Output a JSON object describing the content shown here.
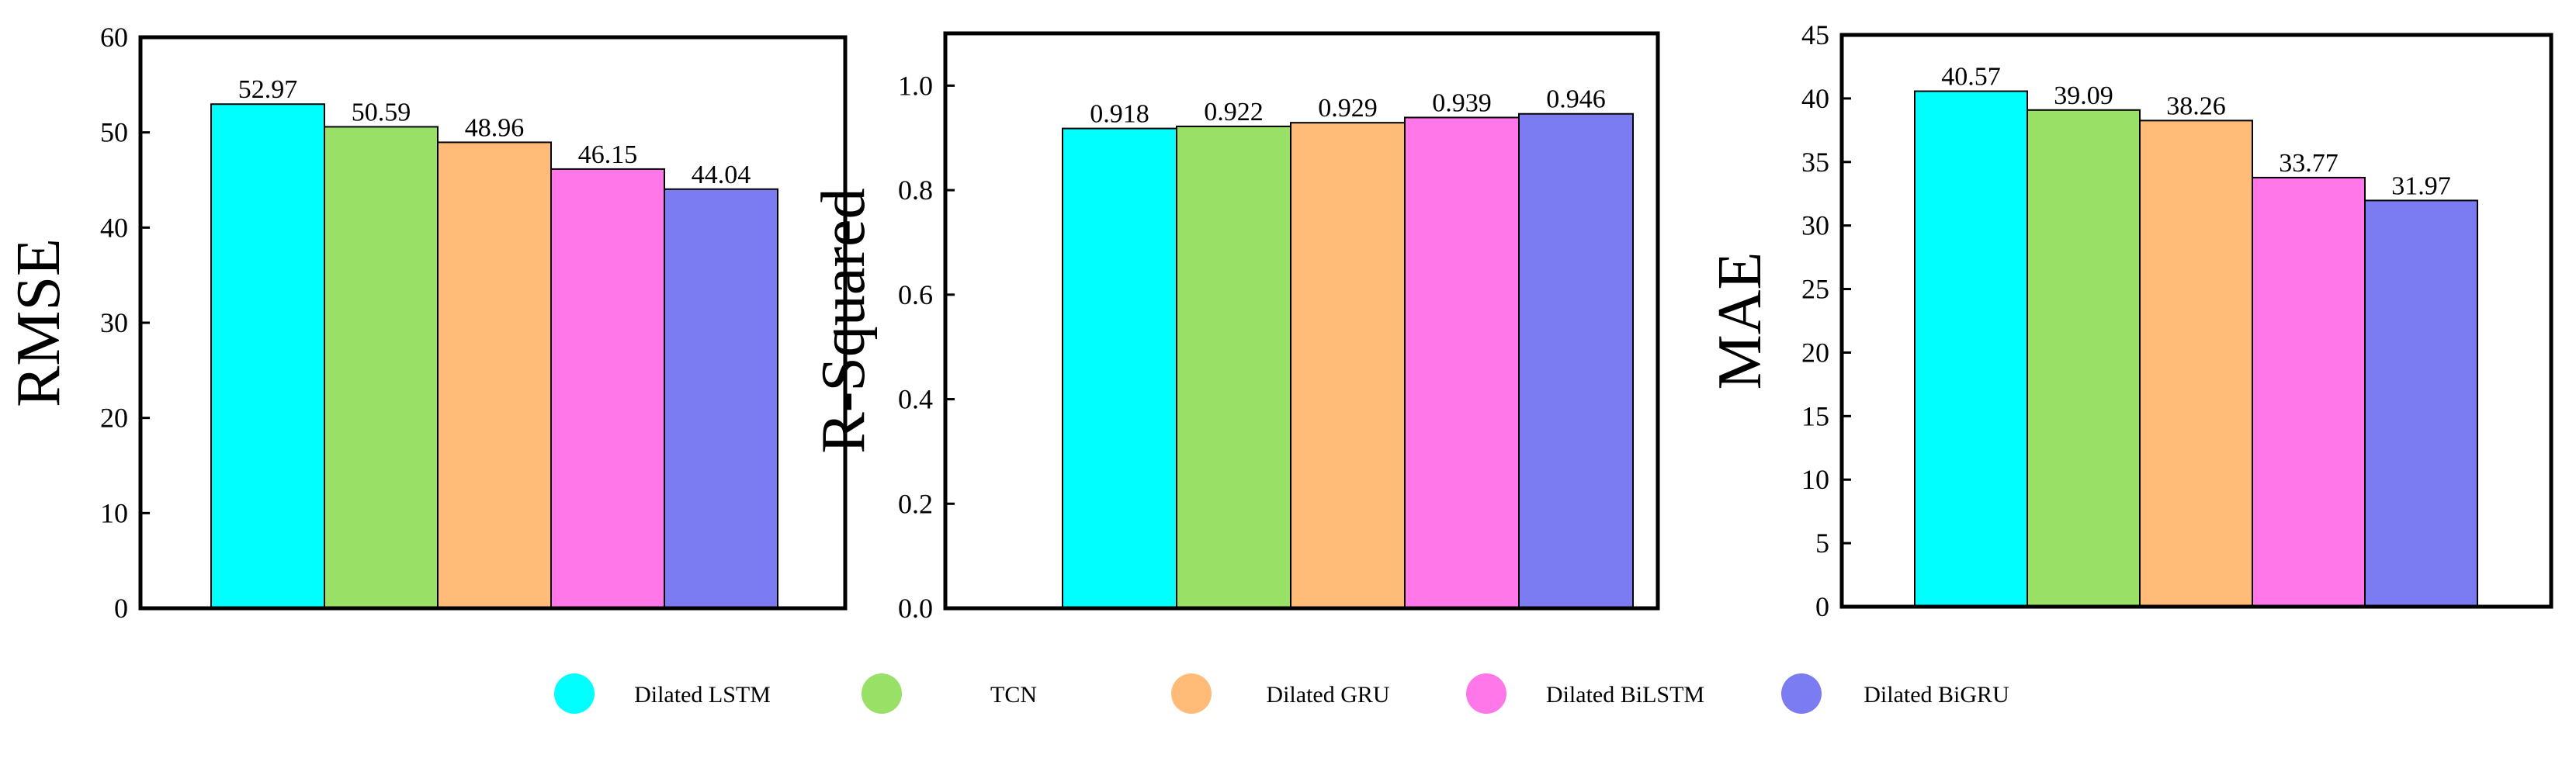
{
  "legend": [
    {
      "label": "Dilated LSTM",
      "color": "#00FFFF"
    },
    {
      "label": "TCN",
      "color": "#99E066"
    },
    {
      "label": "Dilated GRU",
      "color": "#FFBB77"
    },
    {
      "label": "Dilated BiLSTM",
      "color": "#FF77E8"
    },
    {
      "label": "Dilated BiGRU",
      "color": "#7B7BF2"
    }
  ],
  "chart_data": [
    {
      "type": "bar",
      "ylabel": "RMSE",
      "categories": [
        "Dilated LSTM",
        "TCN",
        "Dilated GRU",
        "Dilated BiLSTM",
        "Dilated BiGRU"
      ],
      "values": [
        52.97,
        50.59,
        48.96,
        46.15,
        44.04
      ],
      "value_labels": [
        "52.97",
        "50.59",
        "48.96",
        "46.15",
        "44.04"
      ],
      "ylim": [
        0,
        60
      ],
      "yticks": [
        0,
        10,
        20,
        30,
        40,
        50,
        60
      ],
      "ytick_labels": [
        "0",
        "10",
        "20",
        "30",
        "40",
        "50",
        "60"
      ],
      "grid": false
    },
    {
      "type": "bar",
      "ylabel": "R-Squared",
      "categories": [
        "Dilated LSTM",
        "TCN",
        "Dilated GRU",
        "Dilated BiLSTM",
        "Dilated BiGRU"
      ],
      "values": [
        0.918,
        0.922,
        0.929,
        0.939,
        0.946
      ],
      "value_labels": [
        "0.918",
        "0.922",
        "0.929",
        "0.939",
        "0.946"
      ],
      "ylim": [
        0,
        1.1
      ],
      "yticks": [
        0,
        0.2,
        0.4,
        0.6,
        0.8,
        1.0
      ],
      "ytick_labels": [
        "0.0",
        "0.2",
        "0.4",
        "0.6",
        "0.8",
        "1.0"
      ],
      "grid": false
    },
    {
      "type": "bar",
      "ylabel": "MAE",
      "categories": [
        "Dilated LSTM",
        "TCN",
        "Dilated GRU",
        "Dilated BiLSTM",
        "Dilated BiGRU"
      ],
      "values": [
        40.57,
        39.09,
        38.26,
        33.77,
        31.97
      ],
      "value_labels": [
        "40.57",
        "39.09",
        "38.26",
        "33.77",
        "31.97"
      ],
      "ylim": [
        0,
        45
      ],
      "yticks": [
        0,
        5,
        10,
        15,
        20,
        25,
        30,
        35,
        40,
        45
      ],
      "ytick_labels": [
        "0",
        "5",
        "10",
        "15",
        "20",
        "25",
        "30",
        "35",
        "40",
        "45"
      ],
      "grid": false
    }
  ]
}
